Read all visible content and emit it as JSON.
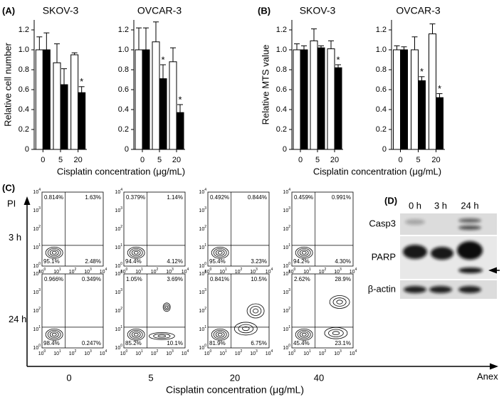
{
  "chart_data": [
    {
      "type": "bar",
      "title": "SKOV-3",
      "ylabel": "Relative cell number",
      "categories": [
        "0",
        "5",
        "20"
      ],
      "series": [
        {
          "color": "#ffffff",
          "values": [
            1.0,
            0.87,
            0.95
          ],
          "errors": [
            0.13,
            0.19,
            0.02
          ]
        },
        {
          "color": "#000000",
          "values": [
            1.0,
            0.65,
            0.57
          ],
          "errors": [
            0.17,
            0.16,
            0.06
          ],
          "significance": [
            null,
            null,
            "*"
          ]
        }
      ],
      "ylim": [
        0,
        1.3
      ],
      "yticks": [
        0,
        0.2,
        0.4,
        0.6,
        0.8,
        {
          "value": 1,
          "label": "1.0"
        },
        1.2
      ]
    },
    {
      "type": "bar",
      "title": "OVCAR-3",
      "categories": [
        "0",
        "5",
        "20"
      ],
      "series": [
        {
          "color": "#ffffff",
          "values": [
            1.0,
            1.08,
            0.88
          ],
          "errors": [
            0.22,
            0.2,
            0.14
          ]
        },
        {
          "color": "#000000",
          "values": [
            1.0,
            0.71,
            0.37
          ],
          "errors": [
            0.22,
            0.14,
            0.08
          ],
          "significance": [
            null,
            "*",
            "*"
          ]
        }
      ],
      "ylim": [
        0,
        1.3
      ],
      "yticks": [
        0,
        0.2,
        0.4,
        0.6,
        0.8,
        {
          "value": 1,
          "label": "1.0"
        },
        1.2
      ]
    },
    {
      "type": "bar",
      "title": "SKOV-3",
      "ylabel": "Relative MTS value",
      "categories": [
        "0",
        "5",
        "20"
      ],
      "series": [
        {
          "color": "#ffffff",
          "values": [
            1.0,
            1.09,
            1.01
          ],
          "errors": [
            0.06,
            0.12,
            0.08
          ]
        },
        {
          "color": "#000000",
          "values": [
            1.0,
            1.02,
            0.82
          ],
          "errors": [
            0.04,
            0.02,
            0.03
          ],
          "significance": [
            null,
            null,
            "*"
          ]
        }
      ],
      "ylim": [
        0,
        1.3
      ],
      "yticks": [
        0,
        0.2,
        0.4,
        0.6,
        0.8,
        {
          "value": 1,
          "label": "1.0"
        },
        1.2
      ]
    },
    {
      "type": "bar",
      "title": "OVCAR-3",
      "categories": [
        "0",
        "5",
        "20"
      ],
      "series": [
        {
          "color": "#ffffff",
          "values": [
            1.0,
            1.0,
            1.16
          ],
          "errors": [
            0.04,
            0.13,
            0.1
          ]
        },
        {
          "color": "#000000",
          "values": [
            1.0,
            0.69,
            0.52
          ],
          "errors": [
            0.03,
            0.04,
            0.04
          ],
          "significance": [
            null,
            "*",
            "*"
          ]
        }
      ],
      "ylim": [
        0,
        1.3
      ],
      "yticks": [
        0,
        0.2,
        0.4,
        0.6,
        0.8,
        {
          "value": 1,
          "label": "1.0"
        },
        1.2
      ]
    }
  ],
  "panels": {
    "a": {
      "label": "(A)",
      "xlabel": "Cisplatin concentration (μg/mL)"
    },
    "b": {
      "label": "(B)",
      "xlabel": "Cisplatin concentration (μg/mL)"
    }
  },
  "flow": {
    "label": "(C)",
    "y_axis": "PI",
    "x_axis": "Anex",
    "xlabel": "Cisplatin concentration (μg/mL)",
    "columns": [
      "0",
      "5",
      "20",
      "40"
    ],
    "log_ticks": [
      {
        "base": "10",
        "exp": "0"
      },
      {
        "base": "10",
        "exp": "1"
      },
      {
        "base": "10",
        "exp": "2"
      },
      {
        "base": "10",
        "exp": "3"
      },
      {
        "base": "10",
        "exp": "4"
      }
    ],
    "rows": [
      {
        "label": "3 h",
        "plots": [
          {
            "ul": "0.814%",
            "ur": "1.63%",
            "ll": "95.1%",
            "lr": "2.48%"
          },
          {
            "ul": "0.379%",
            "ur": "1.14%",
            "ll": "94.4%",
            "lr": "4.12%"
          },
          {
            "ul": "0.492%",
            "ur": "0.844%",
            "ll": "95.4%",
            "lr": "3.23%"
          },
          {
            "ul": "0.459%",
            "ur": "0.991%",
            "ll": "94.2%",
            "lr": "4.30%"
          }
        ]
      },
      {
        "label": "24 h",
        "plots": [
          {
            "ul": "0.966%",
            "ur": "0.349%",
            "ll": "98.4%",
            "lr": "0.247%"
          },
          {
            "ul": "1.05%",
            "ur": "3.69%",
            "ll": "85.2%",
            "lr": "10.1%"
          },
          {
            "ul": "0.841%",
            "ur": "10.5%",
            "ll": "81.9%",
            "lr": "6.75%"
          },
          {
            "ul": "2.62%",
            "ur": "28.9%",
            "ll": "45.4%",
            "lr": "23.1%"
          }
        ]
      }
    ]
  },
  "blot": {
    "label": "(D)",
    "lanes": [
      "0 h",
      "3 h",
      "24 h"
    ],
    "proteins": [
      "Casp3",
      "PARP",
      "β-actin"
    ]
  }
}
